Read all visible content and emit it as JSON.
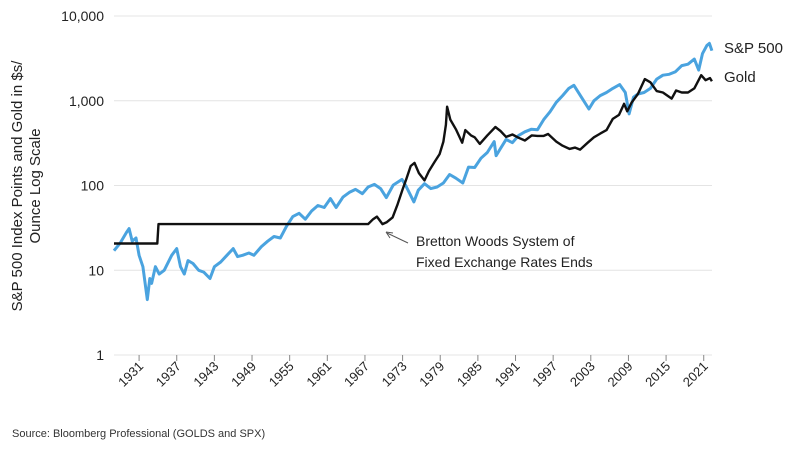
{
  "chart_data": {
    "type": "line",
    "yscale": "log",
    "ylim": [
      1,
      10000
    ],
    "xlim": [
      1927,
      2022
    ],
    "ylabel_lines": [
      "S&P 500 Index Points and Gold in $s/",
      "Ounce Log Scale"
    ],
    "yticks": [
      {
        "value": 1,
        "label": "1"
      },
      {
        "value": 10,
        "label": "10"
      },
      {
        "value": 100,
        "label": "100"
      },
      {
        "value": 1000,
        "label": "1,000"
      },
      {
        "value": 10000,
        "label": "10,000"
      }
    ],
    "xticks": [
      {
        "value": 1931,
        "label": "1931"
      },
      {
        "value": 1937,
        "label": "1937"
      },
      {
        "value": 1943,
        "label": "1943"
      },
      {
        "value": 1949,
        "label": "1949"
      },
      {
        "value": 1955,
        "label": "1955"
      },
      {
        "value": 1961,
        "label": "1961"
      },
      {
        "value": 1967,
        "label": "1967"
      },
      {
        "value": 1973,
        "label": "1973"
      },
      {
        "value": 1979,
        "label": "1979"
      },
      {
        "value": 1985,
        "label": "1985"
      },
      {
        "value": 1991,
        "label": "1991"
      },
      {
        "value": 1997,
        "label": "1997"
      },
      {
        "value": 2003,
        "label": "2003"
      },
      {
        "value": 2009,
        "label": "2009"
      },
      {
        "value": 2015,
        "label": "2015"
      },
      {
        "value": 2021,
        "label": "2021"
      }
    ],
    "grid": "horizontal",
    "series": [
      {
        "name": "S&P 500",
        "color": "#4aa3df",
        "points": [
          [
            1927.0,
            17
          ],
          [
            1928.0,
            21
          ],
          [
            1929.0,
            28
          ],
          [
            1929.4,
            31
          ],
          [
            1929.9,
            22
          ],
          [
            1930.5,
            24
          ],
          [
            1931.0,
            15
          ],
          [
            1931.6,
            11
          ],
          [
            1932.3,
            4.5
          ],
          [
            1932.7,
            8
          ],
          [
            1933.0,
            7
          ],
          [
            1933.6,
            11
          ],
          [
            1934.2,
            9
          ],
          [
            1935.0,
            10
          ],
          [
            1936.2,
            15
          ],
          [
            1937.0,
            18
          ],
          [
            1937.6,
            11
          ],
          [
            1938.2,
            9
          ],
          [
            1938.8,
            13
          ],
          [
            1939.6,
            12
          ],
          [
            1940.5,
            10
          ],
          [
            1941.3,
            9.5
          ],
          [
            1942.3,
            8
          ],
          [
            1943.0,
            11
          ],
          [
            1944.0,
            12.5
          ],
          [
            1945.0,
            15
          ],
          [
            1946.0,
            18
          ],
          [
            1946.7,
            14.5
          ],
          [
            1947.5,
            15
          ],
          [
            1948.5,
            16
          ],
          [
            1949.3,
            15
          ],
          [
            1950.5,
            19
          ],
          [
            1951.5,
            22
          ],
          [
            1952.5,
            25
          ],
          [
            1953.5,
            24
          ],
          [
            1954.5,
            33
          ],
          [
            1955.5,
            43
          ],
          [
            1956.5,
            47
          ],
          [
            1957.5,
            40
          ],
          [
            1958.5,
            50
          ],
          [
            1959.5,
            58
          ],
          [
            1960.5,
            55
          ],
          [
            1961.5,
            70
          ],
          [
            1962.4,
            55
          ],
          [
            1963.5,
            73
          ],
          [
            1964.5,
            83
          ],
          [
            1965.5,
            90
          ],
          [
            1966.6,
            80
          ],
          [
            1967.5,
            96
          ],
          [
            1968.5,
            103
          ],
          [
            1969.5,
            92
          ],
          [
            1970.4,
            72
          ],
          [
            1971.5,
            101
          ],
          [
            1972.9,
            118
          ],
          [
            1973.5,
            100
          ],
          [
            1974.8,
            64
          ],
          [
            1975.5,
            88
          ],
          [
            1976.5,
            105
          ],
          [
            1977.5,
            92
          ],
          [
            1978.5,
            96
          ],
          [
            1979.5,
            107
          ],
          [
            1980.5,
            135
          ],
          [
            1981.5,
            122
          ],
          [
            1982.6,
            107
          ],
          [
            1983.5,
            165
          ],
          [
            1984.5,
            163
          ],
          [
            1985.5,
            210
          ],
          [
            1986.5,
            245
          ],
          [
            1987.6,
            330
          ],
          [
            1987.9,
            225
          ],
          [
            1988.5,
            265
          ],
          [
            1989.5,
            350
          ],
          [
            1990.5,
            320
          ],
          [
            1991.5,
            390
          ],
          [
            1992.5,
            430
          ],
          [
            1993.5,
            460
          ],
          [
            1994.5,
            455
          ],
          [
            1995.5,
            600
          ],
          [
            1996.5,
            740
          ],
          [
            1997.5,
            960
          ],
          [
            1998.5,
            1150
          ],
          [
            1999.5,
            1400
          ],
          [
            2000.3,
            1520
          ],
          [
            2001.5,
            1100
          ],
          [
            2002.7,
            800
          ],
          [
            2003.5,
            1000
          ],
          [
            2004.5,
            1150
          ],
          [
            2005.5,
            1250
          ],
          [
            2006.5,
            1400
          ],
          [
            2007.6,
            1550
          ],
          [
            2008.5,
            1250
          ],
          [
            2009.1,
            700
          ],
          [
            2009.8,
            1100
          ],
          [
            2010.5,
            1200
          ],
          [
            2011.5,
            1250
          ],
          [
            2012.5,
            1400
          ],
          [
            2013.5,
            1800
          ],
          [
            2014.5,
            2000
          ],
          [
            2015.5,
            2050
          ],
          [
            2016.5,
            2200
          ],
          [
            2017.5,
            2600
          ],
          [
            2018.5,
            2700
          ],
          [
            2019.5,
            3100
          ],
          [
            2020.2,
            2300
          ],
          [
            2020.8,
            3600
          ],
          [
            2021.5,
            4500
          ],
          [
            2021.9,
            4750
          ],
          [
            2022.3,
            3900
          ]
        ]
      },
      {
        "name": "Gold",
        "color": "#111111",
        "points": [
          [
            1927.0,
            20.67
          ],
          [
            1933.9,
            20.67
          ],
          [
            1934.1,
            35
          ],
          [
            1967.5,
            35
          ],
          [
            1968.3,
            40
          ],
          [
            1968.9,
            43
          ],
          [
            1969.8,
            35
          ],
          [
            1970.5,
            37
          ],
          [
            1971.4,
            42
          ],
          [
            1972.2,
            60
          ],
          [
            1973.0,
            90
          ],
          [
            1973.6,
            120
          ],
          [
            1974.3,
            170
          ],
          [
            1974.9,
            185
          ],
          [
            1975.6,
            140
          ],
          [
            1976.5,
            115
          ],
          [
            1977.2,
            148
          ],
          [
            1978.1,
            190
          ],
          [
            1978.9,
            235
          ],
          [
            1979.5,
            330
          ],
          [
            1979.9,
            520
          ],
          [
            1980.1,
            850
          ],
          [
            1980.6,
            600
          ],
          [
            1981.5,
            460
          ],
          [
            1982.5,
            320
          ],
          [
            1983.0,
            450
          ],
          [
            1983.9,
            390
          ],
          [
            1984.5,
            370
          ],
          [
            1985.3,
            310
          ],
          [
            1986.5,
            390
          ],
          [
            1987.8,
            490
          ],
          [
            1988.6,
            440
          ],
          [
            1989.5,
            375
          ],
          [
            1990.5,
            400
          ],
          [
            1991.5,
            365
          ],
          [
            1992.5,
            340
          ],
          [
            1993.6,
            390
          ],
          [
            1994.5,
            385
          ],
          [
            1995.5,
            385
          ],
          [
            1996.2,
            405
          ],
          [
            1997.5,
            330
          ],
          [
            1998.5,
            295
          ],
          [
            1999.6,
            270
          ],
          [
            2000.5,
            280
          ],
          [
            2001.3,
            265
          ],
          [
            2002.5,
            320
          ],
          [
            2003.5,
            370
          ],
          [
            2004.5,
            410
          ],
          [
            2005.5,
            450
          ],
          [
            2006.5,
            610
          ],
          [
            2007.5,
            680
          ],
          [
            2008.3,
            920
          ],
          [
            2008.8,
            750
          ],
          [
            2009.5,
            950
          ],
          [
            2010.5,
            1200
          ],
          [
            2011.6,
            1800
          ],
          [
            2012.5,
            1650
          ],
          [
            2013.5,
            1300
          ],
          [
            2014.5,
            1250
          ],
          [
            2015.9,
            1060
          ],
          [
            2016.6,
            1320
          ],
          [
            2017.5,
            1250
          ],
          [
            2018.5,
            1250
          ],
          [
            2019.5,
            1400
          ],
          [
            2020.6,
            2000
          ],
          [
            2021.3,
            1750
          ],
          [
            2022.0,
            1850
          ],
          [
            2022.3,
            1700
          ]
        ]
      }
    ],
    "labels": {
      "sp500": "S&P 500",
      "gold": "Gold"
    },
    "annotation": {
      "lines": [
        "Bretton Woods System of",
        "Fixed Exchange Rates Ends"
      ],
      "target_year": 1971,
      "target_value": 35
    }
  },
  "source": "Source: Bloomberg Professional (GOLDS and SPX)"
}
